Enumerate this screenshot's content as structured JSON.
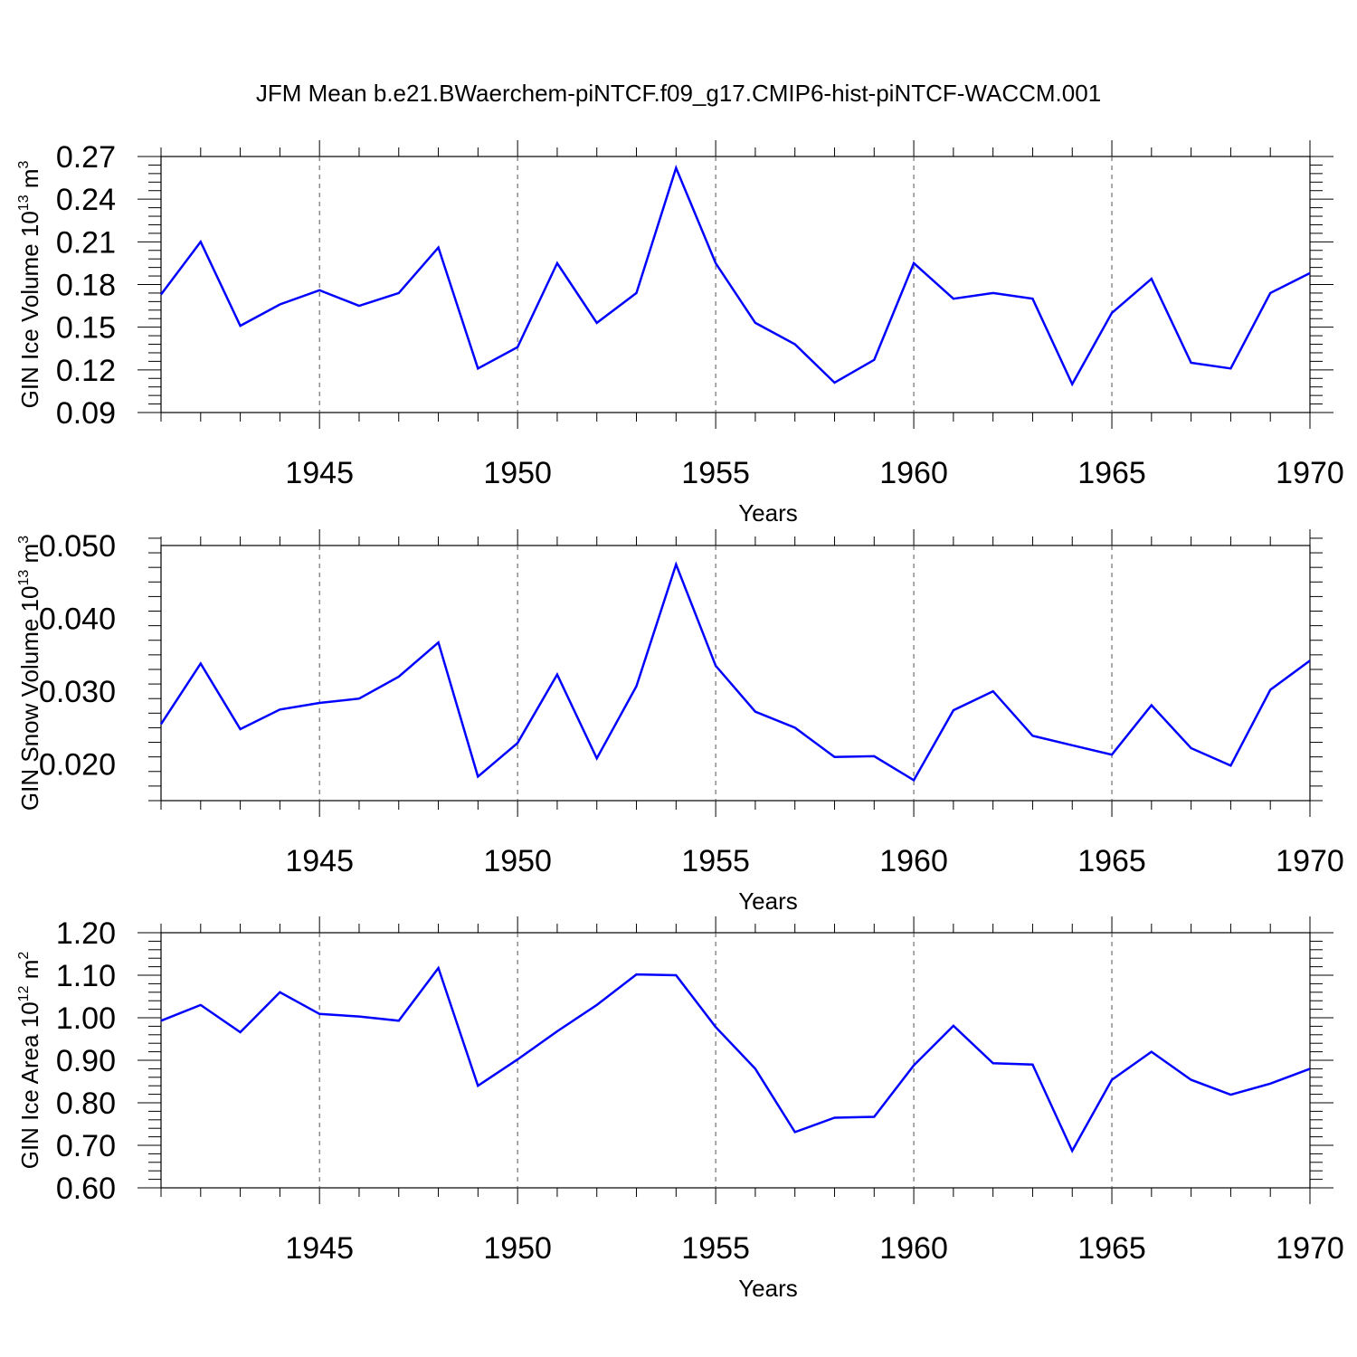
{
  "title": "JFM Mean b.e21.BWaerchem-piNTCF.f09_g17.CMIP6-hist-piNTCF-WACCM.001",
  "line_color": "#0000ff",
  "grid_color": "#555555",
  "chart_data": [
    {
      "type": "line",
      "ylabel_main": "GIN Ice Volume 10",
      "ylabel_exp": "13",
      "ylabel_unit": " m",
      "ylabel_unit_exp": "3",
      "xlabel": "Years",
      "xlim": [
        1941,
        1970
      ],
      "ylim": [
        0.09,
        0.27
      ],
      "yticks": [
        "0.09",
        "0.12",
        "0.15",
        "0.18",
        "0.21",
        "0.24",
        "0.27"
      ],
      "xticks": [
        "1945",
        "1950",
        "1955",
        "1960",
        "1965",
        "1970"
      ],
      "grid": "vertical dashed at labeled years",
      "x": [
        1941,
        1942,
        1943,
        1944,
        1945,
        1946,
        1947,
        1948,
        1949,
        1950,
        1951,
        1952,
        1953,
        1954,
        1955,
        1956,
        1957,
        1958,
        1959,
        1960,
        1961,
        1962,
        1963,
        1964,
        1965,
        1966,
        1967,
        1968,
        1969,
        1970
      ],
      "values": [
        0.173,
        0.21,
        0.151,
        0.166,
        0.176,
        0.165,
        0.174,
        0.206,
        0.121,
        0.136,
        0.195,
        0.153,
        0.174,
        0.262,
        0.195,
        0.153,
        0.138,
        0.111,
        0.127,
        0.195,
        0.17,
        0.174,
        0.17,
        0.11,
        0.16,
        0.184,
        0.125,
        0.121,
        0.174,
        0.188
      ]
    },
    {
      "type": "line",
      "ylabel_main": "GIN Snow Volume 10",
      "ylabel_exp": "13",
      "ylabel_unit": " m",
      "ylabel_unit_exp": "3",
      "xlabel": "Years",
      "xlim": [
        1941,
        1970
      ],
      "ylim": [
        0.015,
        0.05
      ],
      "yticks": [
        "0.020",
        "0.030",
        "0.040",
        "0.050"
      ],
      "xticks": [
        "1945",
        "1950",
        "1955",
        "1960",
        "1965",
        "1970"
      ],
      "grid": "vertical dashed at labeled years",
      "x": [
        1941,
        1942,
        1943,
        1944,
        1945,
        1946,
        1947,
        1948,
        1949,
        1950,
        1951,
        1952,
        1953,
        1954,
        1955,
        1956,
        1957,
        1958,
        1959,
        1960,
        1961,
        1962,
        1963,
        1964,
        1965,
        1966,
        1967,
        1968,
        1969,
        1970
      ],
      "values": [
        0.0255,
        0.0338,
        0.0248,
        0.0275,
        0.0284,
        0.029,
        0.032,
        0.0367,
        0.0183,
        0.0229,
        0.0323,
        0.0208,
        0.0307,
        0.0474,
        0.0335,
        0.0272,
        0.025,
        0.021,
        0.0211,
        0.0178,
        0.0274,
        0.03,
        0.0239,
        0.0226,
        0.0213,
        0.0281,
        0.0222,
        0.0198,
        0.0302,
        0.0342
      ]
    },
    {
      "type": "line",
      "ylabel_main": "GIN Ice Area 10",
      "ylabel_exp": "12",
      "ylabel_unit": " m",
      "ylabel_unit_exp": "2",
      "xlabel": "Years",
      "xlim": [
        1941,
        1970
      ],
      "ylim": [
        0.6,
        1.2
      ],
      "yticks": [
        "0.60",
        "0.70",
        "0.80",
        "0.90",
        "1.00",
        "1.10",
        "1.20"
      ],
      "xticks": [
        "1945",
        "1950",
        "1955",
        "1960",
        "1965",
        "1970"
      ],
      "grid": "vertical dashed at labeled years",
      "x": [
        1941,
        1942,
        1943,
        1944,
        1945,
        1946,
        1947,
        1948,
        1949,
        1950,
        1951,
        1952,
        1953,
        1954,
        1955,
        1956,
        1957,
        1958,
        1959,
        1960,
        1961,
        1962,
        1963,
        1964,
        1965,
        1966,
        1967,
        1968,
        1969,
        1970
      ],
      "values": [
        0.993,
        1.03,
        0.966,
        1.06,
        1.009,
        1.003,
        0.993,
        1.117,
        0.84,
        0.902,
        0.968,
        1.03,
        1.102,
        1.1,
        0.978,
        0.88,
        0.731,
        0.765,
        0.767,
        0.888,
        0.981,
        0.893,
        0.89,
        0.687,
        0.854,
        0.92,
        0.854,
        0.819,
        0.845,
        0.88
      ]
    }
  ]
}
